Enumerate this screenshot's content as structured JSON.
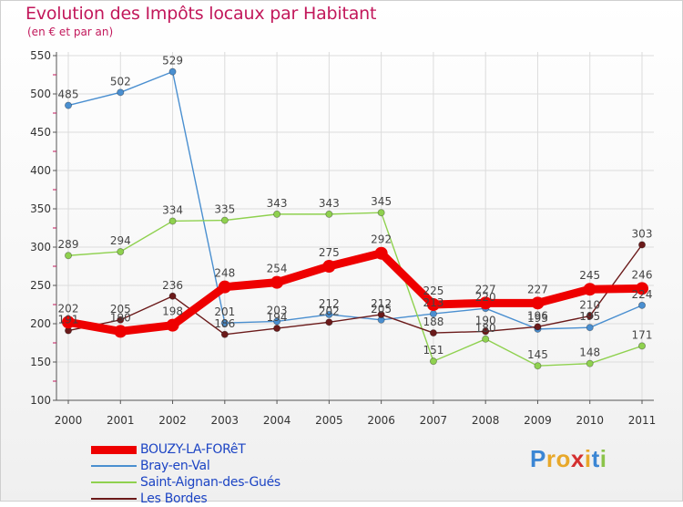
{
  "title": "Evolution des Impôts locaux par Habitant",
  "subtitle": "(en € et par an)",
  "logo": {
    "text": "Proxiti",
    "letters": [
      "P",
      "r",
      "o",
      "x",
      "i",
      "t",
      "i"
    ],
    "colors": [
      "#3b86d4",
      "#e8a82a",
      "#e8a82a",
      "#d42f2f",
      "#e8a82a",
      "#3b86d4",
      "#8bc34a"
    ]
  },
  "chart_data": {
    "type": "line",
    "title": "Evolution des Impôts locaux par Habitant",
    "subtitle": "(en € et par an)",
    "xlabel": "",
    "ylabel": "",
    "x": [
      "2000",
      "2001",
      "2002",
      "2003",
      "2004",
      "2005",
      "2006",
      "2007",
      "2008",
      "2009",
      "2010",
      "2011"
    ],
    "ylim": [
      100,
      550
    ],
    "yticks": [
      100,
      150,
      200,
      250,
      300,
      350,
      400,
      450,
      500,
      550
    ],
    "legend_position": "bottom-left",
    "series": [
      {
        "name": "BOUZY-LA-FORêT",
        "color": "#ee0000",
        "thick": true,
        "values": [
          202,
          190,
          198,
          248,
          254,
          275,
          292,
          225,
          227,
          227,
          245,
          246
        ]
      },
      {
        "name": "Bray-en-Val",
        "color": "#4a8fd0",
        "thick": false,
        "values": [
          485,
          502,
          529,
          201,
          203,
          212,
          205,
          213,
          220,
          193,
          195,
          224
        ]
      },
      {
        "name": "Saint-Aignan-des-Gués",
        "color": "#8fd14f",
        "thick": false,
        "values": [
          289,
          294,
          334,
          335,
          343,
          343,
          345,
          151,
          180,
          145,
          148,
          171
        ]
      },
      {
        "name": "Les Bordes",
        "color": "#6b1a1a",
        "thick": false,
        "values": [
          191,
          205,
          236,
          186,
          194,
          202,
          212,
          188,
          190,
          196,
          210,
          303
        ]
      }
    ]
  }
}
